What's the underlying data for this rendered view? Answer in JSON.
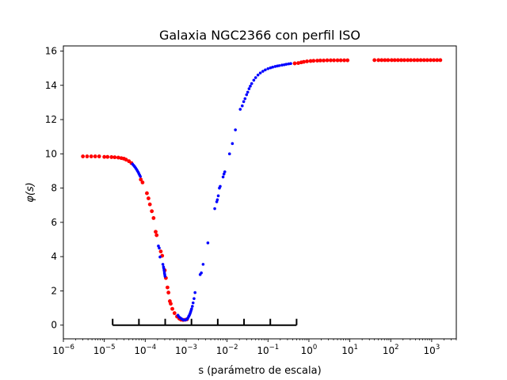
{
  "chart_data": {
    "type": "scatter",
    "title": "Galaxia NGC2366 con perfil ISO",
    "xlabel": "s (parámetro de escala)",
    "ylabel": "φ(s)",
    "xscale": "log",
    "xlim": [
      1e-06,
      4000
    ],
    "ylim": [
      -0.8,
      16.3
    ],
    "grid": false,
    "x_ticks": [
      {
        "value": 1e-06,
        "exp": "−6"
      },
      {
        "value": 1e-05,
        "exp": "−5"
      },
      {
        "value": 0.0001,
        "exp": "−4"
      },
      {
        "value": 0.001,
        "exp": "−3"
      },
      {
        "value": 0.01,
        "exp": "−2"
      },
      {
        "value": 0.1,
        "exp": "−1"
      },
      {
        "value": 1,
        "exp": "0"
      },
      {
        "value": 10,
        "exp": "1"
      },
      {
        "value": 100,
        "exp": "2"
      },
      {
        "value": 1000,
        "exp": "3"
      }
    ],
    "y_ticks": [
      0,
      2,
      4,
      6,
      8,
      10,
      12,
      14,
      16
    ],
    "bracket": {
      "y": 0,
      "x_start": 1.6e-05,
      "x_end": 0.5,
      "divisions": 7
    },
    "series": [
      {
        "color": "#ff0000",
        "marker_size": 2.4,
        "points": [
          [
            3e-06,
            9.85
          ],
          [
            3.8e-06,
            9.85
          ],
          [
            4.8e-06,
            9.85
          ],
          [
            6e-06,
            9.85
          ],
          [
            7.5e-06,
            9.85
          ],
          [
            1e-05,
            9.82
          ],
          [
            1.2e-05,
            9.82
          ],
          [
            1.5e-05,
            9.81
          ],
          [
            1.8e-05,
            9.8
          ],
          [
            2.2e-05,
            9.78
          ],
          [
            2.6e-05,
            9.75
          ],
          [
            3e-05,
            9.72
          ],
          [
            3.4e-05,
            9.66
          ],
          [
            4e-05,
            9.57
          ],
          [
            4.6e-05,
            9.46
          ],
          [
            7.8e-05,
            8.5
          ],
          [
            8.6e-05,
            8.33
          ],
          [
            0.00011,
            7.7
          ],
          [
            0.00012,
            7.4
          ],
          [
            0.00013,
            7.05
          ],
          [
            0.000145,
            6.65
          ],
          [
            0.00016,
            6.25
          ],
          [
            0.00018,
            5.45
          ],
          [
            0.00019,
            5.25
          ],
          [
            0.00024,
            4.3
          ],
          [
            0.00026,
            4.05
          ],
          [
            0.0003,
            3.2
          ],
          [
            0.00032,
            2.75
          ],
          [
            0.00035,
            2.2
          ],
          [
            0.00037,
            1.9
          ],
          [
            0.0004,
            1.4
          ],
          [
            0.00042,
            1.25
          ],
          [
            0.00046,
            0.95
          ],
          [
            0.00052,
            0.7
          ],
          [
            0.0006,
            0.5
          ],
          [
            0.00068,
            0.38
          ],
          [
            0.00075,
            0.32
          ],
          [
            0.00084,
            0.3
          ],
          [
            0.00094,
            0.31
          ],
          [
            0.00105,
            0.34
          ],
          [
            0.45,
            15.28
          ],
          [
            0.55,
            15.3
          ],
          [
            0.65,
            15.34
          ],
          [
            0.75,
            15.37
          ],
          [
            0.9,
            15.4
          ],
          [
            1.1,
            15.42
          ],
          [
            1.3,
            15.43
          ],
          [
            1.6,
            15.44
          ],
          [
            1.9,
            15.45
          ],
          [
            2.3,
            15.45
          ],
          [
            2.8,
            15.46
          ],
          [
            3.4,
            15.46
          ],
          [
            4.1,
            15.46
          ],
          [
            5.0,
            15.46
          ],
          [
            6.0,
            15.46
          ],
          [
            7.3,
            15.46
          ],
          [
            8.8,
            15.46
          ],
          [
            40,
            15.47
          ],
          [
            50,
            15.47
          ],
          [
            60,
            15.47
          ],
          [
            72,
            15.47
          ],
          [
            86,
            15.47
          ],
          [
            105,
            15.47
          ],
          [
            125,
            15.47
          ],
          [
            150,
            15.47
          ],
          [
            180,
            15.47
          ],
          [
            215,
            15.47
          ],
          [
            260,
            15.47
          ],
          [
            310,
            15.47
          ],
          [
            375,
            15.47
          ],
          [
            450,
            15.47
          ],
          [
            540,
            15.47
          ],
          [
            650,
            15.47
          ],
          [
            780,
            15.47
          ],
          [
            940,
            15.47
          ],
          [
            1130,
            15.47
          ],
          [
            1360,
            15.47
          ],
          [
            1630,
            15.47
          ]
        ]
      },
      {
        "color": "#0000ff",
        "marker_size": 1.8,
        "points": [
          [
            4.9e-05,
            9.4
          ],
          [
            5.2e-05,
            9.33
          ],
          [
            5.5e-05,
            9.26
          ],
          [
            5.8e-05,
            9.18
          ],
          [
            6.1e-05,
            9.1
          ],
          [
            6.4e-05,
            9.02
          ],
          [
            6.7e-05,
            8.94
          ],
          [
            7e-05,
            8.85
          ],
          [
            7.3e-05,
            8.76
          ],
          [
            7.6e-05,
            8.68
          ],
          [
            0.00021,
            4.62
          ],
          [
            0.00022,
            4.5
          ],
          [
            0.00023,
            3.98
          ],
          [
            0.00027,
            3.55
          ],
          [
            0.00028,
            3.4
          ],
          [
            0.000285,
            3.3
          ],
          [
            0.00029,
            3.18
          ],
          [
            0.000295,
            3.05
          ],
          [
            0.0003,
            2.95
          ],
          [
            0.000305,
            2.85
          ],
          [
            0.00063,
            0.58
          ],
          [
            0.00066,
            0.5
          ],
          [
            0.0007,
            0.44
          ],
          [
            0.00074,
            0.4
          ],
          [
            0.00078,
            0.36
          ],
          [
            0.00082,
            0.33
          ],
          [
            0.00087,
            0.3
          ],
          [
            0.00092,
            0.3
          ],
          [
            0.00098,
            0.31
          ],
          [
            0.00102,
            0.33
          ],
          [
            0.00108,
            0.38
          ],
          [
            0.00112,
            0.44
          ],
          [
            0.00116,
            0.52
          ],
          [
            0.0012,
            0.58
          ],
          [
            0.00124,
            0.66
          ],
          [
            0.00128,
            0.75
          ],
          [
            0.00132,
            0.85
          ],
          [
            0.00136,
            0.95
          ],
          [
            0.00142,
            1.1
          ],
          [
            0.00148,
            1.3
          ],
          [
            0.00156,
            1.55
          ],
          [
            0.00165,
            1.9
          ],
          [
            0.0022,
            2.95
          ],
          [
            0.00235,
            3.05
          ],
          [
            0.0026,
            3.55
          ],
          [
            0.0034,
            4.8
          ],
          [
            0.005,
            6.8
          ],
          [
            0.0056,
            7.2
          ],
          [
            0.0058,
            7.32
          ],
          [
            0.0061,
            7.55
          ],
          [
            0.0065,
            8.0
          ],
          [
            0.0068,
            8.1
          ],
          [
            0.008,
            8.65
          ],
          [
            0.0084,
            8.82
          ],
          [
            0.0088,
            8.95
          ],
          [
            0.0115,
            10.0
          ],
          [
            0.0135,
            10.6
          ],
          [
            0.016,
            11.4
          ],
          [
            0.021,
            12.6
          ],
          [
            0.0235,
            12.8
          ],
          [
            0.0255,
            13.05
          ],
          [
            0.0275,
            13.22
          ],
          [
            0.03,
            13.45
          ],
          [
            0.032,
            13.6
          ],
          [
            0.0345,
            13.8
          ],
          [
            0.037,
            13.95
          ],
          [
            0.04,
            14.1
          ],
          [
            0.045,
            14.3
          ],
          [
            0.05,
            14.45
          ],
          [
            0.057,
            14.6
          ],
          [
            0.065,
            14.72
          ],
          [
            0.075,
            14.82
          ],
          [
            0.086,
            14.9
          ],
          [
            0.1,
            14.97
          ],
          [
            0.115,
            15.02
          ],
          [
            0.13,
            15.06
          ],
          [
            0.15,
            15.1
          ],
          [
            0.17,
            15.13
          ],
          [
            0.19,
            15.15
          ],
          [
            0.22,
            15.18
          ],
          [
            0.25,
            15.2
          ],
          [
            0.28,
            15.23
          ],
          [
            0.32,
            15.25
          ],
          [
            0.36,
            15.27
          ]
        ]
      }
    ]
  }
}
